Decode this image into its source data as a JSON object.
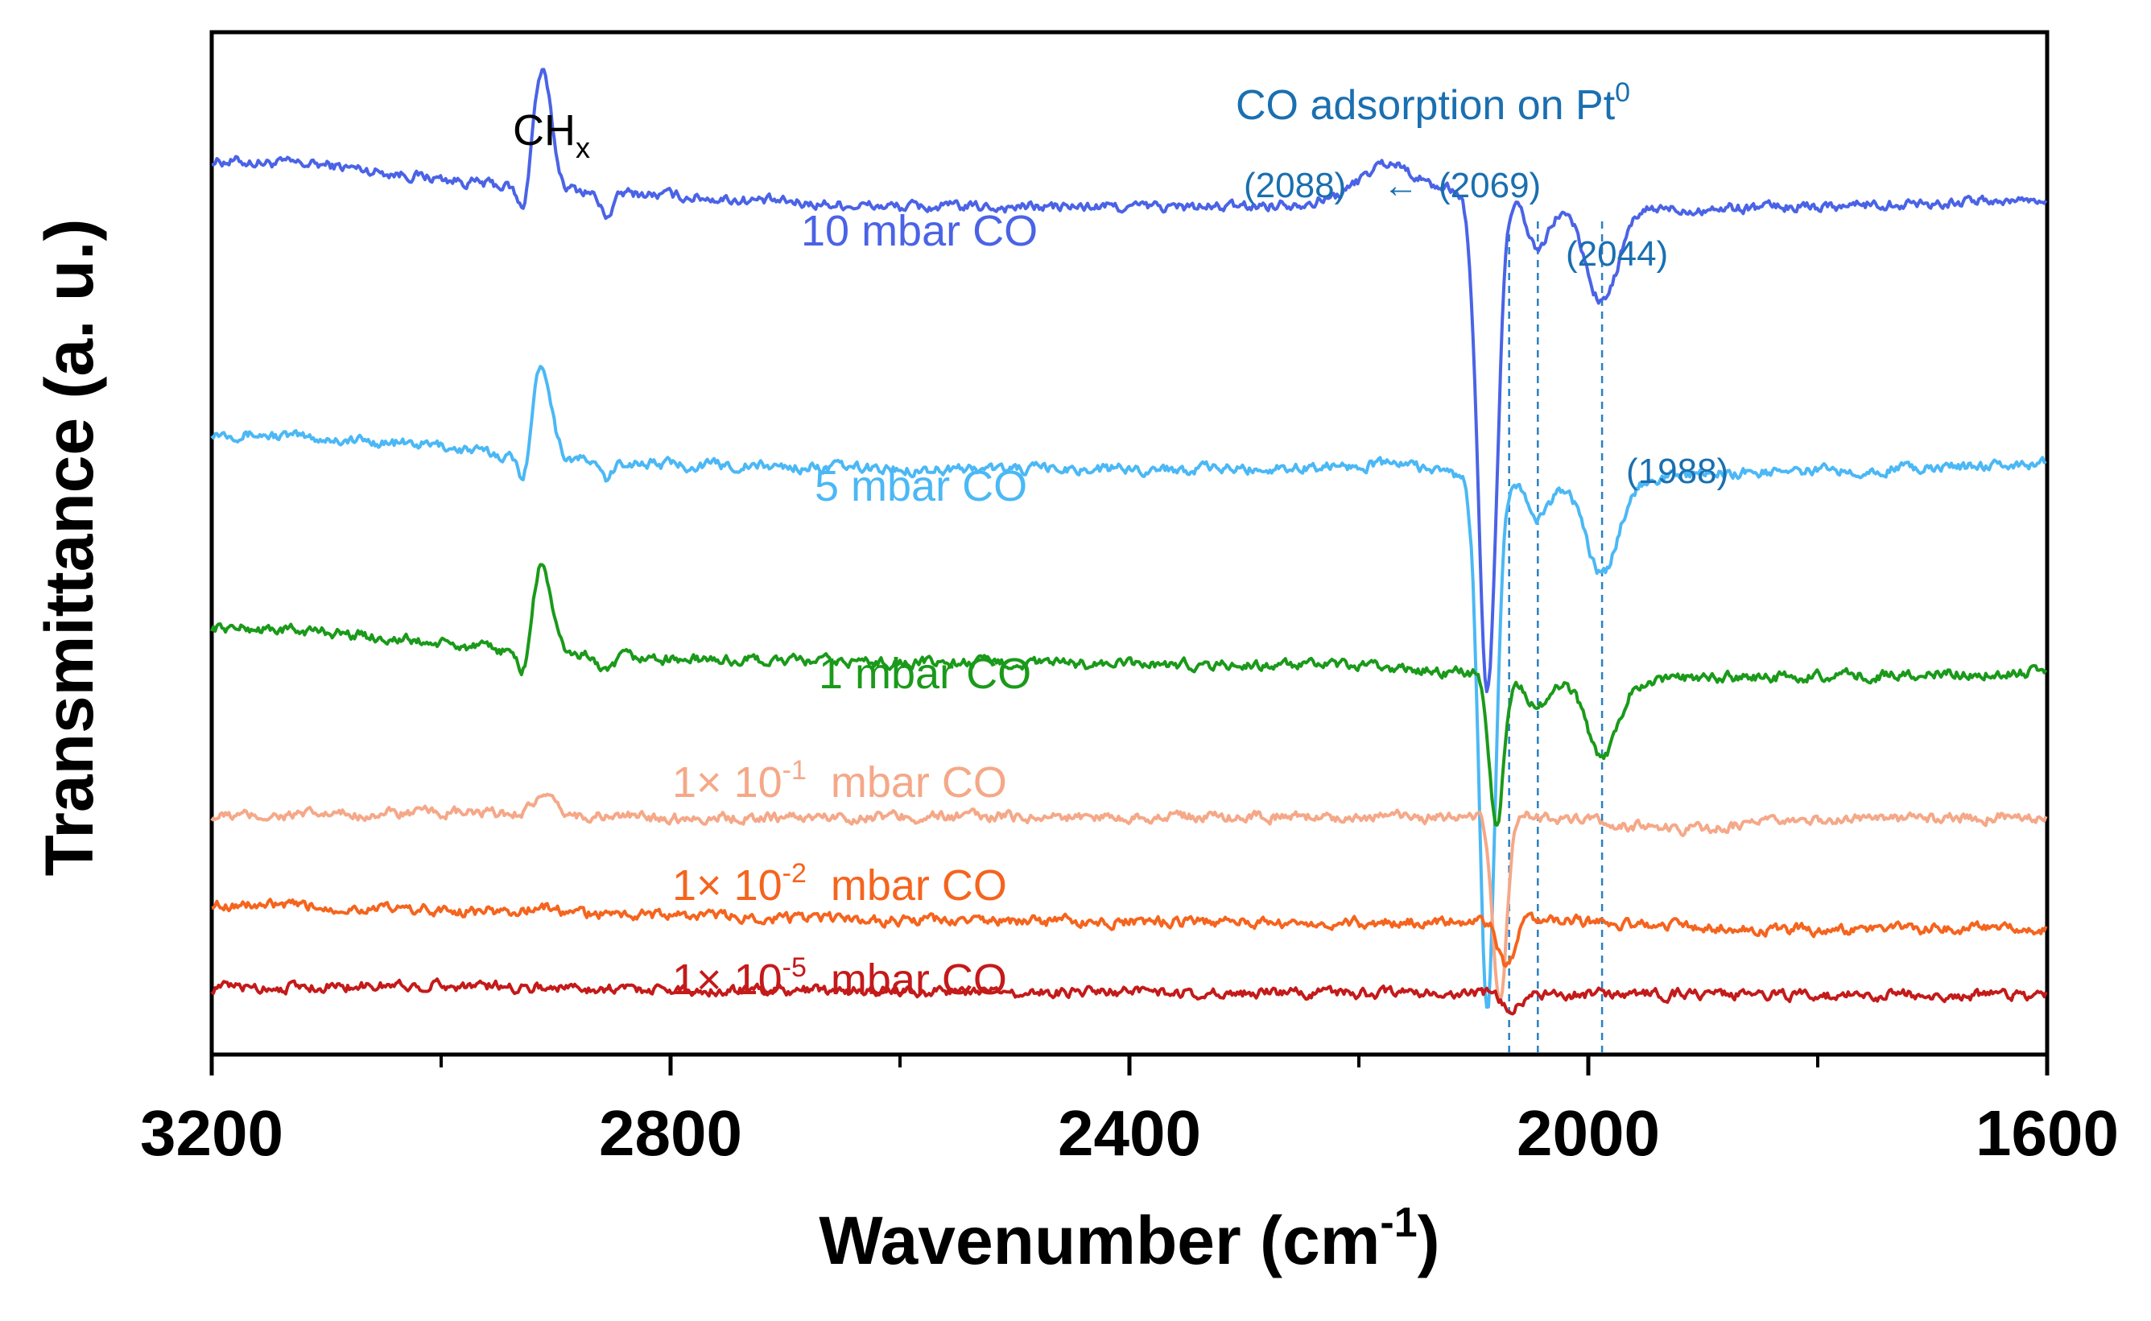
{
  "chart_data": {
    "type": "line",
    "title": "",
    "xlabel": "Wavenumber (cm",
    "xlabel_sup": "-1",
    "xlabel_close": ")",
    "ylabel": "Transmittance (a. u.)",
    "xlim": [
      3200,
      1600
    ],
    "x_ticks": [
      3200,
      2800,
      2400,
      2000,
      1600
    ],
    "x_tick_labels": [
      "3200",
      "2800",
      "2400",
      "2000",
      "1600"
    ],
    "x_minor_ticks": [
      3000,
      2600,
      2200,
      1800
    ],
    "y_ticks_shown": false,
    "grid": false,
    "legend": "none",
    "series": [
      {
        "name": "10 mbar CO",
        "label_parts": {
          "text": "10 mbar CO"
        },
        "color": "#4a63e6",
        "baseline": [
          [
            3200,
            9.62
          ],
          [
            3100,
            9.57
          ],
          [
            2950,
            9.35
          ],
          [
            2700,
            9.17
          ],
          [
            2600,
            9.12
          ],
          [
            2300,
            9.12
          ],
          [
            2100,
            9.32
          ],
          [
            2080,
            9.3
          ],
          [
            2000,
            9.1
          ],
          [
            1900,
            9.1
          ],
          [
            1600,
            9.2
          ]
        ],
        "peaks": [
          {
            "x": 2912,
            "amp": 1.25,
            "w": 8
          },
          {
            "x": 2928,
            "amp": -0.35,
            "w": 5
          },
          {
            "x": 2856,
            "amp": -0.25,
            "w": 6
          },
          {
            "x": 2175,
            "amp": 0.35,
            "w": 22
          },
          {
            "x": 2088,
            "amp": -5.4,
            "w": 8
          },
          {
            "x": 2044,
            "amp": -0.55,
            "w": 10
          },
          {
            "x": 1988,
            "amp": -1.0,
            "w": 14
          }
        ]
      },
      {
        "name": "5 mbar CO",
        "label_parts": {
          "text": "5 mbar CO"
        },
        "color": "#4bb8f5",
        "baseline": [
          [
            3200,
            6.7
          ],
          [
            3000,
            6.55
          ],
          [
            2950,
            6.45
          ],
          [
            2800,
            6.35
          ],
          [
            2600,
            6.3
          ],
          [
            2300,
            6.3
          ],
          [
            2160,
            6.36
          ],
          [
            2100,
            6.2
          ],
          [
            2000,
            6.15
          ],
          [
            1900,
            6.25
          ],
          [
            1600,
            6.35
          ]
        ],
        "peaks": [
          {
            "x": 2912,
            "amp": 1.0,
            "w": 8
          },
          {
            "x": 2928,
            "amp": -0.3,
            "w": 5
          },
          {
            "x": 2856,
            "amp": -0.2,
            "w": 6
          },
          {
            "x": 2088,
            "amp": -5.7,
            "w": 7
          },
          {
            "x": 2044,
            "amp": -0.4,
            "w": 10
          },
          {
            "x": 1988,
            "amp": -1.0,
            "w": 14
          }
        ]
      },
      {
        "name": "1 mbar CO",
        "label_parts": {
          "text": "1 mbar CO"
        },
        "color": "#1a9a1a",
        "baseline": [
          [
            3200,
            4.6
          ],
          [
            3100,
            4.55
          ],
          [
            2950,
            4.35
          ],
          [
            2800,
            4.25
          ],
          [
            2600,
            4.22
          ],
          [
            2200,
            4.18
          ],
          [
            2100,
            4.1
          ],
          [
            2000,
            4.0
          ],
          [
            1900,
            4.05
          ],
          [
            1600,
            4.12
          ]
        ],
        "peaks": [
          {
            "x": 2912,
            "amp": 0.95,
            "w": 8
          },
          {
            "x": 2928,
            "amp": -0.3,
            "w": 5
          },
          {
            "x": 2856,
            "amp": -0.2,
            "w": 6
          },
          {
            "x": 2080,
            "amp": -1.6,
            "w": 6
          },
          {
            "x": 2044,
            "amp": -0.3,
            "w": 10
          },
          {
            "x": 1988,
            "amp": -0.8,
            "w": 13
          }
        ]
      },
      {
        "name": "1× 10-1 mbar CO",
        "label_parts": {
          "pre": "1× 10",
          "sup": "-1",
          "post": "  mbar CO"
        },
        "color": "#f5a888",
        "baseline": [
          [
            3200,
            2.56
          ],
          [
            3000,
            2.6
          ],
          [
            2800,
            2.55
          ],
          [
            2600,
            2.56
          ],
          [
            2200,
            2.56
          ],
          [
            2100,
            2.55
          ],
          [
            2060,
            2.6
          ],
          [
            2000,
            2.5
          ],
          [
            1920,
            2.42
          ],
          [
            1800,
            2.52
          ],
          [
            1600,
            2.56
          ]
        ],
        "peaks": [
          {
            "x": 2912,
            "amp": 0.18,
            "w": 10
          },
          {
            "x": 2077,
            "amp": -2.0,
            "w": 6
          }
        ]
      },
      {
        "name": "1× 10-2 mbar CO",
        "label_parts": {
          "pre": "1× 10",
          "sup": "-2",
          "post": "  mbar CO"
        },
        "color": "#f5641e",
        "baseline": [
          [
            3200,
            1.62
          ],
          [
            3000,
            1.55
          ],
          [
            2800,
            1.5
          ],
          [
            2600,
            1.44
          ],
          [
            2200,
            1.42
          ],
          [
            2100,
            1.44
          ],
          [
            2040,
            1.45
          ],
          [
            1900,
            1.38
          ],
          [
            1800,
            1.34
          ],
          [
            1600,
            1.36
          ]
        ],
        "peaks": [
          {
            "x": 2912,
            "amp": 0.06,
            "w": 10
          },
          {
            "x": 2071,
            "amp": -0.5,
            "w": 7
          }
        ]
      },
      {
        "name": "1× 10-5 mbar CO",
        "label_parts": {
          "pre": "1× 10",
          "sup": "-5",
          "post": "  mbar CO"
        },
        "color": "#c41a1a",
        "baseline": [
          [
            3200,
            0.72
          ],
          [
            3000,
            0.75
          ],
          [
            2800,
            0.7
          ],
          [
            2600,
            0.68
          ],
          [
            2200,
            0.66
          ],
          [
            2100,
            0.66
          ],
          [
            2000,
            0.65
          ],
          [
            1800,
            0.64
          ],
          [
            1600,
            0.64
          ]
        ],
        "peaks": [
          {
            "x": 2068,
            "amp": -0.18,
            "w": 8
          }
        ]
      }
    ],
    "annotations": {
      "chx": {
        "pre": "CH",
        "sub": "x",
        "x": 2912
      },
      "title": {
        "pre": "CO adsorption on Pt",
        "sup": "0"
      },
      "label_2088": "(2088)",
      "arrow": "←",
      "label_2069": "(2069)",
      "label_2044": "(2044)",
      "label_1988": "(1988)",
      "dashed_lines_x": [
        2069,
        2044,
        1988
      ]
    }
  }
}
